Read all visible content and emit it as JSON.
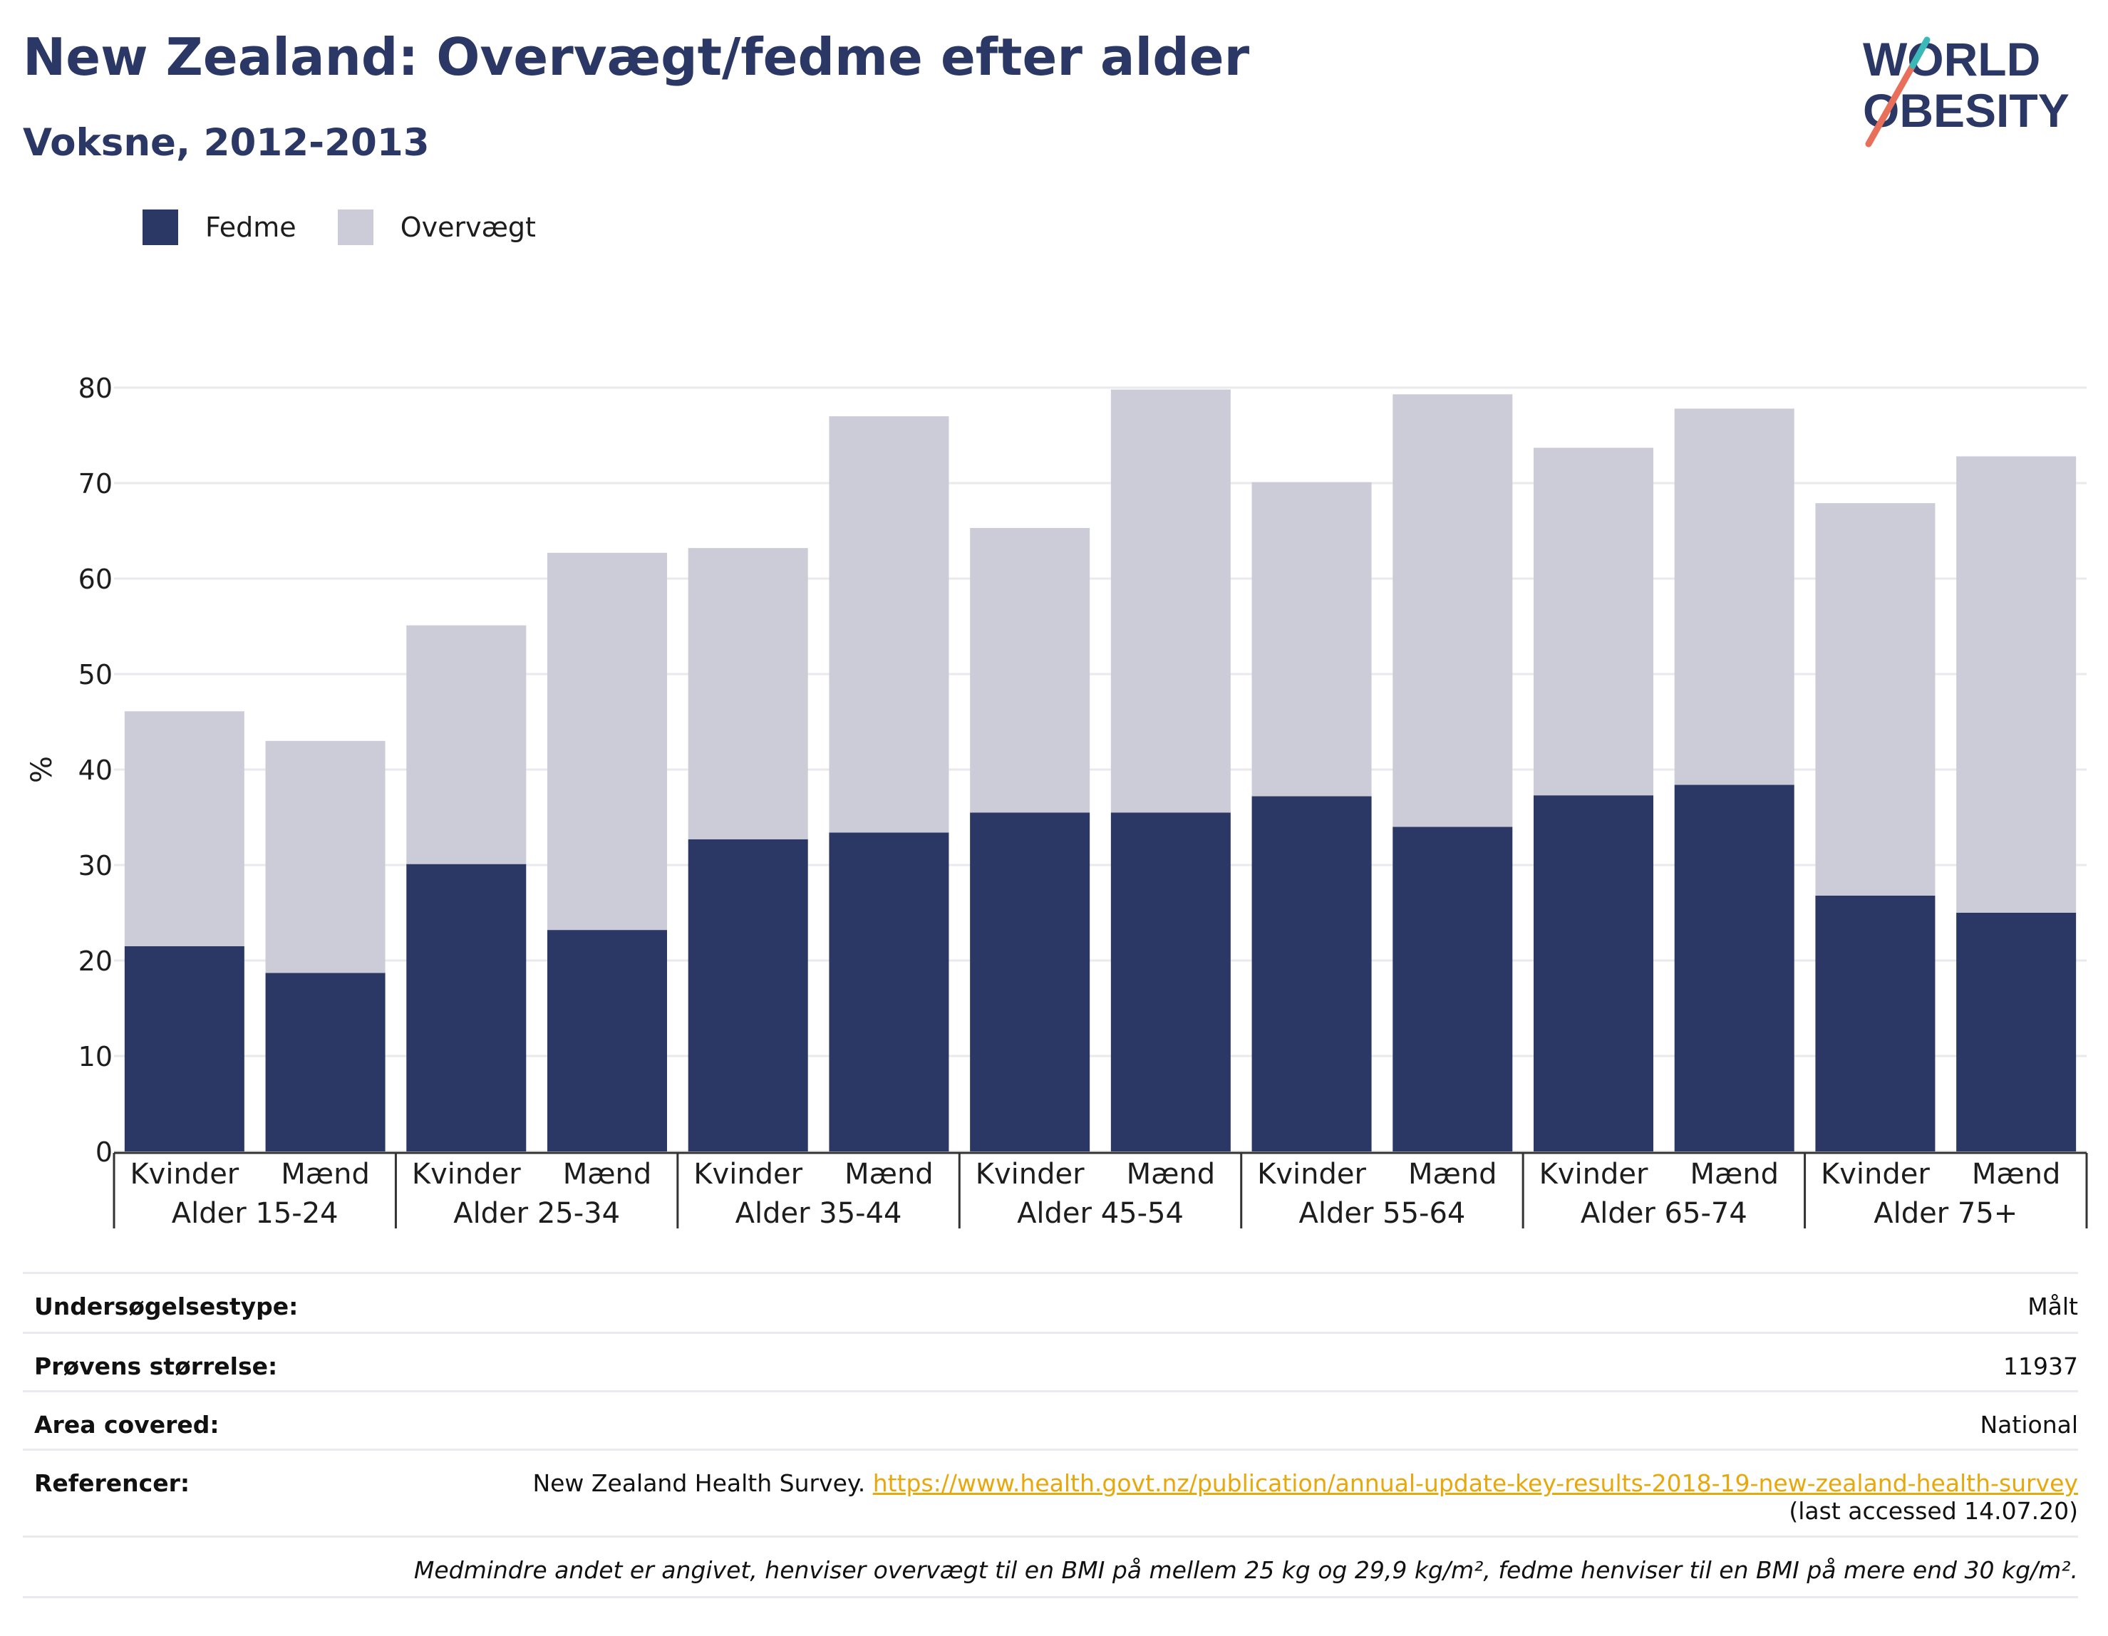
{
  "header": {
    "title": "New Zealand: Overvægt/fedme efter alder",
    "subtitle": "Voksne, 2012-2013"
  },
  "logo": {
    "line1": "WORLD",
    "line2": "OBESITY",
    "colors": [
      "#2b3764",
      "#e8705a",
      "#3bb8b8"
    ]
  },
  "legend": [
    {
      "label": "Fedme",
      "color": "#2b3764"
    },
    {
      "label": "Overvægt",
      "color": "#cbccd8"
    }
  ],
  "chart_data": {
    "type": "bar",
    "stacked": true,
    "ylabel": "%",
    "ylim": [
      0,
      80
    ],
    "yticks": [
      0,
      10,
      20,
      30,
      40,
      50,
      60,
      70,
      80
    ],
    "grid": true,
    "legend_position": "top-left",
    "groups": [
      "Alder 15-24",
      "Alder 25-34",
      "Alder 35-44",
      "Alder 45-54",
      "Alder 55-64",
      "Alder 65-74",
      "Alder 75+"
    ],
    "categories": [
      "Kvinder",
      "Mænd",
      "Kvinder",
      "Mænd",
      "Kvinder",
      "Mænd",
      "Kvinder",
      "Mænd",
      "Kvinder",
      "Mænd",
      "Kvinder",
      "Mænd",
      "Kvinder",
      "Mænd"
    ],
    "series": [
      {
        "name": "Fedme",
        "color": "#2b3764",
        "values": [
          21.5,
          18.7,
          30.1,
          23.2,
          32.7,
          33.4,
          35.5,
          35.5,
          37.2,
          34.0,
          37.3,
          38.4,
          26.8,
          25.0
        ]
      },
      {
        "name": "Overvægt",
        "color": "#cbccd8",
        "values": [
          24.6,
          24.3,
          25.0,
          39.5,
          30.5,
          43.6,
          29.8,
          44.3,
          32.9,
          45.3,
          36.4,
          39.4,
          41.1,
          47.8
        ]
      }
    ]
  },
  "info": {
    "survey_type": {
      "label": "Undersøgelsestype:",
      "value": "Målt"
    },
    "sample_size": {
      "label": "Prøvens størrelse:",
      "value": "11937"
    },
    "area": {
      "label": "Area covered:",
      "value": "National"
    },
    "references": {
      "label": "Referencer:",
      "source": "New Zealand Health Survey. ",
      "url": "https://www.health.govt.nz/publication/annual-update-key-results-2018-19-new-zealand-health-survey",
      "accessed": "(last accessed 14.07.20)"
    },
    "note": "Medmindre andet er angivet, henviser overvægt til en BMI på mellem 25 kg og 29,9 kg/m², fedme henviser til en BMI på mere end 30 kg/m²."
  }
}
